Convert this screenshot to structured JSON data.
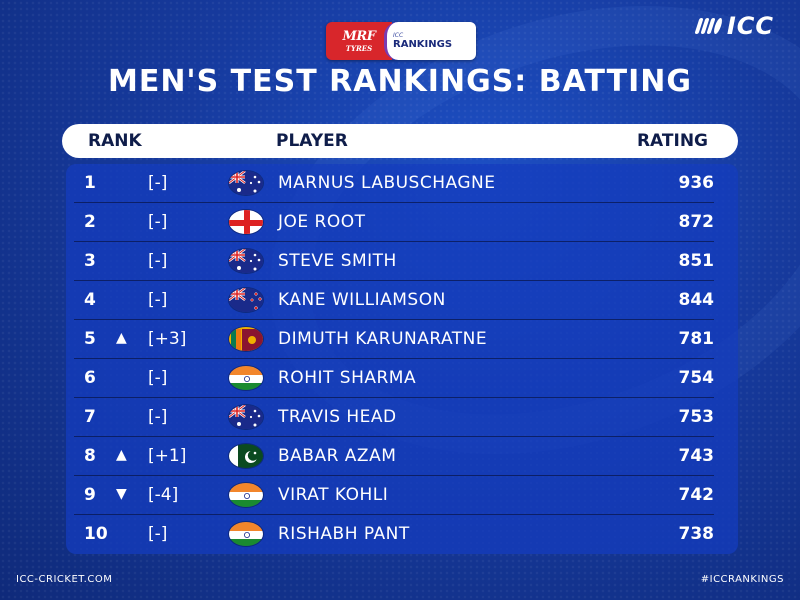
{
  "sponsor": {
    "brand_line1": "MRF",
    "brand_line2": "TYRES",
    "rankings_small": "ICC",
    "rankings_big": "RANKINGS"
  },
  "logo": {
    "text": "ICC"
  },
  "title": "MEN'S TEST RANKINGS:  BATTING",
  "table": {
    "headers": {
      "rank": "RANK",
      "player": "PLAYER",
      "rating": "RATING"
    },
    "rows": [
      {
        "rank": "1",
        "arrow": "",
        "movement": "[-]",
        "flag": "australia-flag",
        "player": "MARNUS LABUSCHAGNE",
        "rating": "936"
      },
      {
        "rank": "2",
        "arrow": "",
        "movement": "[-]",
        "flag": "england-flag",
        "player": "JOE ROOT",
        "rating": "872"
      },
      {
        "rank": "3",
        "arrow": "",
        "movement": "[-]",
        "flag": "australia-flag",
        "player": "STEVE SMITH",
        "rating": "851"
      },
      {
        "rank": "4",
        "arrow": "",
        "movement": "[-]",
        "flag": "new-zealand-flag",
        "player": "KANE WILLIAMSON",
        "rating": "844"
      },
      {
        "rank": "5",
        "arrow": "▲",
        "movement": "[+3]",
        "flag": "sri-lanka-flag",
        "player": "DIMUTH KARUNARATNE",
        "rating": "781"
      },
      {
        "rank": "6",
        "arrow": "",
        "movement": "[-]",
        "flag": "india-flag",
        "player": "ROHIT SHARMA",
        "rating": "754"
      },
      {
        "rank": "7",
        "arrow": "",
        "movement": "[-]",
        "flag": "australia-flag",
        "player": "TRAVIS HEAD",
        "rating": "753"
      },
      {
        "rank": "8",
        "arrow": "▲",
        "movement": "[+1]",
        "flag": "pakistan-flag",
        "player": "BABAR AZAM",
        "rating": "743"
      },
      {
        "rank": "9",
        "arrow": "▼",
        "movement": "[-4]",
        "flag": "india-flag",
        "player": "VIRAT KOHLI",
        "rating": "742"
      },
      {
        "rank": "10",
        "arrow": "",
        "movement": "[-]",
        "flag": "india-flag",
        "player": "RISHABH PANT",
        "rating": "738"
      }
    ]
  },
  "footer": {
    "left": "ICC-CRICKET.COM",
    "right": "#ICCRANKINGS"
  },
  "colors": {
    "background": "#163a9e",
    "header_bar": "#ffffff",
    "header_text": "#0f1d4a",
    "mrf_red": "#d8262b"
  }
}
